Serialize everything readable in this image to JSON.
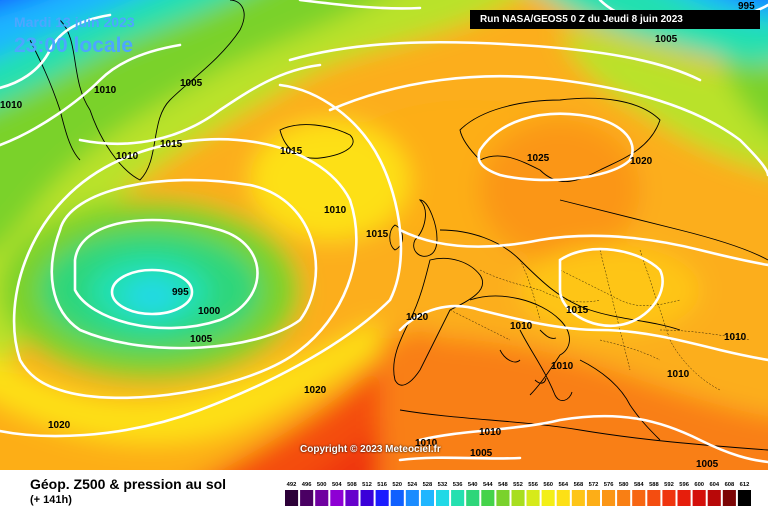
{
  "map": {
    "date": "Mardi 13 juin 2023",
    "time": "23:00 locale",
    "run": "Run NASA/GEOS5 0 Z du Jeudi 8 juin 2023",
    "copyright": "Copyright © 2023 Meteociel.fr",
    "title": "Géop. Z500 & pression au sol",
    "lead": "(+ 141h)"
  },
  "isobar_labels": [
    "995",
    "1005",
    "1010",
    "1010",
    "1005",
    "1015",
    "1010",
    "1015",
    "1025",
    "1020",
    "1010",
    "1015",
    "995",
    "1000",
    "1005",
    "1020",
    "1010",
    "1015",
    "1010",
    "1020",
    "1020",
    "1010",
    "1005",
    "1010",
    "1005"
  ],
  "legend": {
    "values": [
      "492",
      "496",
      "500",
      "504",
      "508",
      "512",
      "516",
      "520",
      "524",
      "528",
      "532",
      "536",
      "540",
      "544",
      "548",
      "552",
      "556",
      "560",
      "564",
      "568",
      "572",
      "576",
      "580",
      "584",
      "588",
      "592",
      "596",
      "600",
      "604",
      "608",
      "612"
    ],
    "colors": [
      "#2c0038",
      "#4a0063",
      "#6f00a0",
      "#8e00d4",
      "#6600cc",
      "#3a00d9",
      "#1c1cff",
      "#1060ff",
      "#1a8cff",
      "#1fb6ff",
      "#20d9e6",
      "#24e0b0",
      "#2ed67a",
      "#45d34a",
      "#7ad22c",
      "#a8de1f",
      "#d6ea1a",
      "#f3ef17",
      "#fde016",
      "#fec517",
      "#fdae17",
      "#fb9616",
      "#f97f14",
      "#f76612",
      "#f44d10",
      "#ef340e",
      "#e61e0c",
      "#d40f0a",
      "#b80808",
      "#7c0505",
      "#000000"
    ]
  }
}
